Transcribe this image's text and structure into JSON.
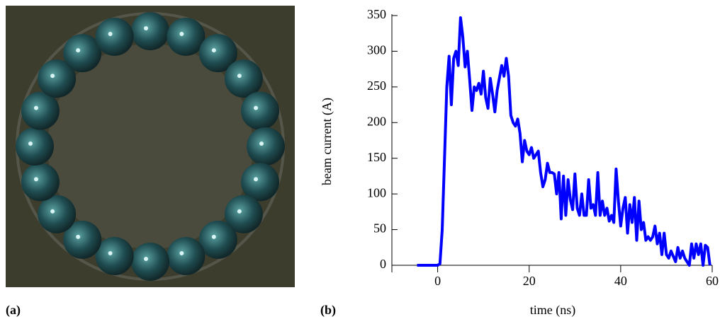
{
  "image_label": "(a)",
  "chart_data": {
    "type": "line",
    "panel_label": "(b)",
    "xlabel": "time (ns)",
    "ylabel": "beam current (A)",
    "color": "#0000ff",
    "xlim": [
      -10,
      60
    ],
    "xticks": [
      0,
      20,
      40,
      60
    ],
    "ylim": [
      0,
      350
    ],
    "yticks": [
      0,
      50,
      100,
      150,
      200,
      250,
      300,
      350
    ],
    "x": [
      -4.5,
      0,
      0.5,
      1,
      1.5,
      2,
      2.5,
      3,
      3.5,
      4,
      4.5,
      5,
      5.5,
      6,
      6.5,
      7,
      7.5,
      8,
      8.5,
      9,
      9.5,
      10,
      10.5,
      11,
      11.5,
      12,
      12.5,
      13,
      14,
      14.5,
      15,
      15.5,
      16,
      16.5,
      17,
      17.5,
      18,
      18.5,
      19,
      19.5,
      20,
      20.5,
      21,
      22,
      22.5,
      23,
      23.5,
      24,
      24.5,
      25,
      25.5,
      26,
      26.5,
      27,
      27.5,
      28,
      28.5,
      29,
      29.5,
      30,
      30.5,
      31,
      31.5,
      32,
      32.5,
      33,
      33.5,
      34,
      34.5,
      35,
      35.5,
      36,
      36.5,
      37,
      37.5,
      38,
      38.5,
      39,
      39.5,
      40,
      40.5,
      41,
      41.5,
      42,
      42.5,
      43,
      43.5,
      44,
      44.5,
      45,
      45.5,
      46,
      46.5,
      47,
      47.5,
      48,
      48.5,
      49,
      49.5,
      50,
      50.5,
      51,
      52,
      52.5,
      53,
      53.5,
      54,
      55,
      55.5,
      56,
      56.5,
      57,
      57.5,
      58,
      58.5,
      59,
      59.5
    ],
    "values": [
      0,
      0,
      2,
      50,
      150,
      250,
      293,
      225,
      290,
      300,
      280,
      347,
      320,
      278,
      300,
      260,
      217,
      250,
      245,
      255,
      240,
      272,
      235,
      220,
      262,
      240,
      215,
      245,
      280,
      265,
      290,
      265,
      210,
      200,
      195,
      205,
      185,
      145,
      175,
      160,
      155,
      165,
      150,
      160,
      130,
      110,
      120,
      143,
      130,
      130,
      128,
      100,
      130,
      65,
      125,
      70,
      120,
      92,
      78,
      128,
      80,
      70,
      100,
      70,
      70,
      120,
      80,
      85,
      70,
      130,
      70,
      90,
      70,
      80,
      62,
      70,
      60,
      135,
      90,
      55,
      80,
      95,
      45,
      85,
      60,
      95,
      35,
      90,
      50,
      60,
      35,
      40,
      35,
      40,
      55,
      30,
      45,
      15,
      45,
      15,
      10,
      20,
      5,
      25,
      10,
      20,
      10,
      0,
      30,
      10,
      30,
      15,
      30,
      0,
      28,
      25,
      0
    ]
  }
}
